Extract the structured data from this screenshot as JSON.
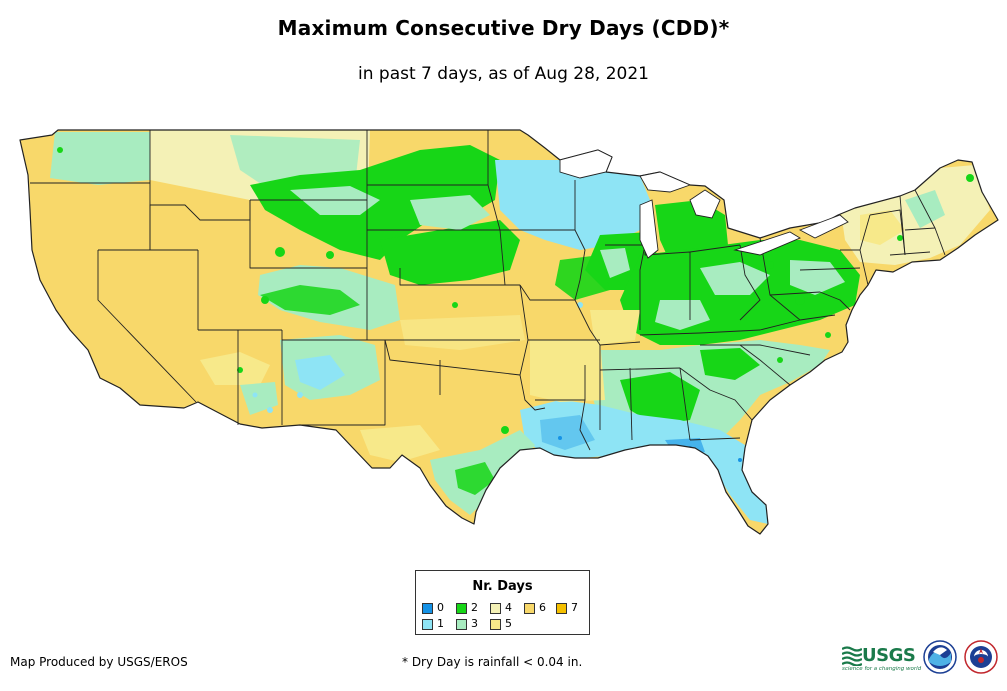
{
  "title": "Maximum Consecutive Dry Days (CDD)*",
  "subtitle": "in past 7 days, as of Aug 28, 2021",
  "legend": {
    "title": "Nr. Days",
    "items": [
      {
        "label": "0",
        "color": "#1592e6"
      },
      {
        "label": "1",
        "color": "#8ee4f5"
      },
      {
        "label": "2",
        "color": "#17d617"
      },
      {
        "label": "3",
        "color": "#a8ecc0"
      },
      {
        "label": "4",
        "color": "#f4f1b6"
      },
      {
        "label": "5",
        "color": "#f7e98a"
      },
      {
        "label": "6",
        "color": "#f8d86a"
      },
      {
        "label": "7",
        "color": "#f5c000"
      }
    ]
  },
  "credit": "Map Produced by USGS/EROS",
  "footnote": "* Dry Day is rainfall < 0.04 in.",
  "logos": {
    "usgs": "USGS",
    "usgs_tagline": "science for a changing world"
  },
  "colors": {
    "border": "#222222",
    "background": "#ffffff"
  }
}
